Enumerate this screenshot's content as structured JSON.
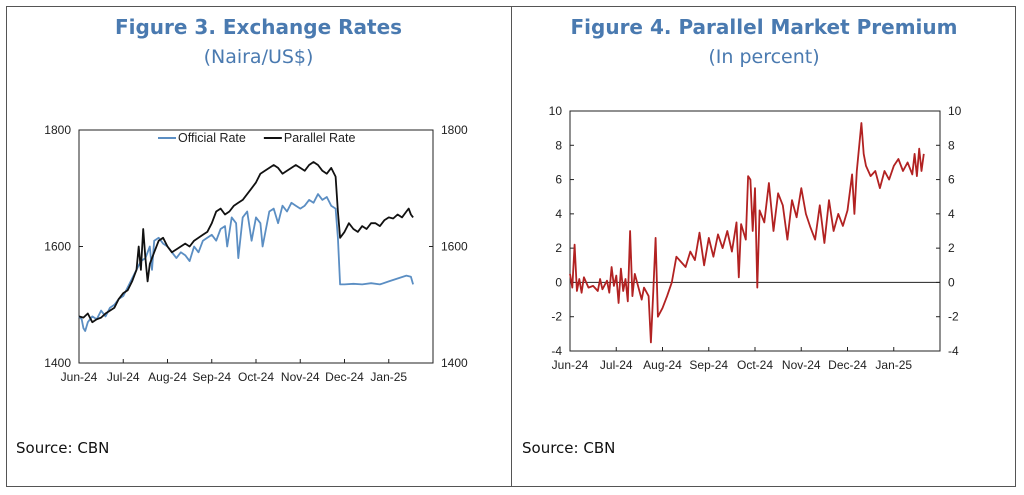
{
  "figure3": {
    "title": "Figure 3. Exchange Rates",
    "subtitle": "(Naira/US$)",
    "source": "Source: CBN"
  },
  "figure4": {
    "title": "Figure 4. Parallel Market Premium",
    "subtitle": "(In percent)",
    "source": "Source: CBN"
  },
  "chart_data": [
    {
      "type": "line",
      "title": "Figure 3. Exchange Rates",
      "subtitle": "(Naira/US$)",
      "categories": [
        "Jun-24",
        "Jul-24",
        "Aug-24",
        "Sep-24",
        "Oct-24",
        "Nov-24",
        "Dec-24",
        "Jan-25"
      ],
      "ylim": [
        1400,
        1800
      ],
      "yticks": [
        1400,
        1600,
        1800
      ],
      "y2ticks": [
        1400,
        1600,
        1800
      ],
      "legend_position": "top",
      "grid": false,
      "series": [
        {
          "name": "Official Rate",
          "color": "#5b8ec3",
          "points": [
            [
              0,
              1480
            ],
            [
              0.06,
              1475
            ],
            [
              0.1,
              1460
            ],
            [
              0.14,
              1455
            ],
            [
              0.2,
              1470
            ],
            [
              0.3,
              1480
            ],
            [
              0.4,
              1475
            ],
            [
              0.5,
              1490
            ],
            [
              0.6,
              1480
            ],
            [
              0.7,
              1495
            ],
            [
              0.8,
              1500
            ],
            [
              0.9,
              1510
            ],
            [
              1.0,
              1515
            ],
            [
              1.1,
              1530
            ],
            [
              1.2,
              1545
            ],
            [
              1.3,
              1560
            ],
            [
              1.4,
              1575
            ],
            [
              1.5,
              1580
            ],
            [
              1.6,
              1600
            ],
            [
              1.65,
              1560
            ],
            [
              1.7,
              1610
            ],
            [
              1.8,
              1615
            ],
            [
              1.9,
              1605
            ],
            [
              2.0,
              1600
            ],
            [
              2.1,
              1590
            ],
            [
              2.2,
              1580
            ],
            [
              2.3,
              1590
            ],
            [
              2.4,
              1585
            ],
            [
              2.5,
              1575
            ],
            [
              2.6,
              1600
            ],
            [
              2.7,
              1590
            ],
            [
              2.8,
              1610
            ],
            [
              2.9,
              1615
            ],
            [
              3.0,
              1620
            ],
            [
              3.1,
              1610
            ],
            [
              3.2,
              1630
            ],
            [
              3.3,
              1635
            ],
            [
              3.35,
              1600
            ],
            [
              3.45,
              1650
            ],
            [
              3.55,
              1640
            ],
            [
              3.6,
              1580
            ],
            [
              3.7,
              1650
            ],
            [
              3.8,
              1660
            ],
            [
              3.9,
              1610
            ],
            [
              4.0,
              1650
            ],
            [
              4.1,
              1640
            ],
            [
              4.15,
              1600
            ],
            [
              4.3,
              1660
            ],
            [
              4.4,
              1665
            ],
            [
              4.5,
              1640
            ],
            [
              4.6,
              1670
            ],
            [
              4.7,
              1660
            ],
            [
              4.8,
              1675
            ],
            [
              4.9,
              1670
            ],
            [
              5.0,
              1665
            ],
            [
              5.1,
              1670
            ],
            [
              5.2,
              1680
            ],
            [
              5.3,
              1675
            ],
            [
              5.4,
              1690
            ],
            [
              5.5,
              1680
            ],
            [
              5.6,
              1685
            ],
            [
              5.7,
              1670
            ],
            [
              5.8,
              1665
            ],
            [
              5.85,
              1615
            ],
            [
              5.9,
              1535
            ],
            [
              6.0,
              1535
            ],
            [
              6.2,
              1536
            ],
            [
              6.4,
              1535
            ],
            [
              6.6,
              1537
            ],
            [
              6.8,
              1535
            ],
            [
              7.0,
              1540
            ],
            [
              7.2,
              1545
            ],
            [
              7.4,
              1550
            ],
            [
              7.5,
              1548
            ],
            [
              7.55,
              1535
            ]
          ]
        },
        {
          "name": "Parallel Rate",
          "color": "#111111",
          "points": [
            [
              0,
              1480
            ],
            [
              0.1,
              1478
            ],
            [
              0.2,
              1485
            ],
            [
              0.3,
              1470
            ],
            [
              0.4,
              1475
            ],
            [
              0.5,
              1478
            ],
            [
              0.6,
              1485
            ],
            [
              0.7,
              1490
            ],
            [
              0.8,
              1495
            ],
            [
              0.9,
              1510
            ],
            [
              1.0,
              1520
            ],
            [
              1.1,
              1525
            ],
            [
              1.2,
              1540
            ],
            [
              1.3,
              1560
            ],
            [
              1.35,
              1600
            ],
            [
              1.4,
              1560
            ],
            [
              1.45,
              1630
            ],
            [
              1.5,
              1580
            ],
            [
              1.55,
              1540
            ],
            [
              1.6,
              1570
            ],
            [
              1.7,
              1590
            ],
            [
              1.8,
              1610
            ],
            [
              1.9,
              1615
            ],
            [
              2.0,
              1600
            ],
            [
              2.1,
              1590
            ],
            [
              2.2,
              1595
            ],
            [
              2.3,
              1600
            ],
            [
              2.4,
              1605
            ],
            [
              2.5,
              1600
            ],
            [
              2.6,
              1610
            ],
            [
              2.7,
              1615
            ],
            [
              2.8,
              1620
            ],
            [
              2.9,
              1625
            ],
            [
              3.0,
              1640
            ],
            [
              3.1,
              1660
            ],
            [
              3.2,
              1665
            ],
            [
              3.3,
              1655
            ],
            [
              3.4,
              1660
            ],
            [
              3.5,
              1670
            ],
            [
              3.6,
              1675
            ],
            [
              3.7,
              1680
            ],
            [
              3.8,
              1690
            ],
            [
              3.9,
              1700
            ],
            [
              4.0,
              1710
            ],
            [
              4.1,
              1725
            ],
            [
              4.2,
              1730
            ],
            [
              4.3,
              1735
            ],
            [
              4.4,
              1740
            ],
            [
              4.5,
              1735
            ],
            [
              4.6,
              1725
            ],
            [
              4.7,
              1730
            ],
            [
              4.8,
              1735
            ],
            [
              4.9,
              1740
            ],
            [
              5.0,
              1735
            ],
            [
              5.1,
              1730
            ],
            [
              5.2,
              1740
            ],
            [
              5.3,
              1745
            ],
            [
              5.4,
              1740
            ],
            [
              5.5,
              1730
            ],
            [
              5.6,
              1725
            ],
            [
              5.7,
              1735
            ],
            [
              5.8,
              1720
            ],
            [
              5.85,
              1660
            ],
            [
              5.9,
              1615
            ],
            [
              6.0,
              1625
            ],
            [
              6.1,
              1640
            ],
            [
              6.2,
              1630
            ],
            [
              6.3,
              1625
            ],
            [
              6.4,
              1635
            ],
            [
              6.5,
              1630
            ],
            [
              6.6,
              1640
            ],
            [
              6.7,
              1640
            ],
            [
              6.8,
              1635
            ],
            [
              6.9,
              1645
            ],
            [
              7.0,
              1650
            ],
            [
              7.1,
              1648
            ],
            [
              7.2,
              1655
            ],
            [
              7.3,
              1650
            ],
            [
              7.4,
              1660
            ],
            [
              7.45,
              1665
            ],
            [
              7.5,
              1655
            ],
            [
              7.55,
              1650
            ]
          ]
        }
      ]
    },
    {
      "type": "line",
      "title": "Figure 4. Parallel Market Premium",
      "subtitle": "(In percent)",
      "categories": [
        "Jun-24",
        "Jul-24",
        "Aug-24",
        "Sep-24",
        "Oct-24",
        "Nov-24",
        "Dec-24",
        "Jan-25"
      ],
      "ylim": [
        -4,
        10
      ],
      "yticks": [
        -4,
        -2,
        0,
        2,
        4,
        6,
        8,
        10
      ],
      "y2ticks": [
        -4,
        -2,
        0,
        2,
        4,
        6,
        8,
        10
      ],
      "zero_line": true,
      "grid": false,
      "series": [
        {
          "name": "",
          "color": "#b22222",
          "points": [
            [
              0,
              0.5
            ],
            [
              0.05,
              -0.3
            ],
            [
              0.1,
              2.2
            ],
            [
              0.15,
              -0.5
            ],
            [
              0.2,
              0.2
            ],
            [
              0.25,
              -0.6
            ],
            [
              0.3,
              0.3
            ],
            [
              0.4,
              -0.3
            ],
            [
              0.5,
              -0.2
            ],
            [
              0.6,
              -0.5
            ],
            [
              0.65,
              0.2
            ],
            [
              0.7,
              -0.4
            ],
            [
              0.8,
              0.1
            ],
            [
              0.85,
              -0.6
            ],
            [
              0.9,
              0.9
            ],
            [
              0.95,
              -0.2
            ],
            [
              1.0,
              0.4
            ],
            [
              1.05,
              -1.2
            ],
            [
              1.1,
              0.8
            ],
            [
              1.15,
              -0.5
            ],
            [
              1.2,
              0.2
            ],
            [
              1.25,
              -1.1
            ],
            [
              1.3,
              3.0
            ],
            [
              1.35,
              -0.8
            ],
            [
              1.4,
              0.5
            ],
            [
              1.5,
              -0.5
            ],
            [
              1.55,
              -1.0
            ],
            [
              1.6,
              -0.3
            ],
            [
              1.7,
              -0.8
            ],
            [
              1.75,
              -3.5
            ],
            [
              1.8,
              -0.5
            ],
            [
              1.85,
              2.6
            ],
            [
              1.9,
              -2.0
            ],
            [
              2.0,
              -1.5
            ],
            [
              2.1,
              -0.8
            ],
            [
              2.2,
              0.0
            ],
            [
              2.3,
              1.5
            ],
            [
              2.4,
              1.2
            ],
            [
              2.5,
              0.9
            ],
            [
              2.6,
              1.8
            ],
            [
              2.7,
              1.3
            ],
            [
              2.8,
              2.9
            ],
            [
              2.9,
              1.0
            ],
            [
              3.0,
              2.6
            ],
            [
              3.1,
              1.5
            ],
            [
              3.2,
              2.8
            ],
            [
              3.3,
              2.0
            ],
            [
              3.4,
              3.0
            ],
            [
              3.5,
              1.8
            ],
            [
              3.6,
              3.5
            ],
            [
              3.65,
              0.3
            ],
            [
              3.7,
              3.4
            ],
            [
              3.8,
              2.5
            ],
            [
              3.85,
              6.2
            ],
            [
              3.9,
              6.0
            ],
            [
              3.95,
              3.0
            ],
            [
              4.0,
              5.5
            ],
            [
              4.05,
              -0.3
            ],
            [
              4.1,
              4.2
            ],
            [
              4.2,
              3.5
            ],
            [
              4.3,
              5.8
            ],
            [
              4.4,
              3.0
            ],
            [
              4.5,
              5.2
            ],
            [
              4.6,
              4.5
            ],
            [
              4.7,
              2.5
            ],
            [
              4.8,
              4.8
            ],
            [
              4.9,
              3.8
            ],
            [
              5.0,
              5.5
            ],
            [
              5.1,
              4.0
            ],
            [
              5.2,
              3.2
            ],
            [
              5.3,
              2.5
            ],
            [
              5.4,
              4.5
            ],
            [
              5.5,
              2.3
            ],
            [
              5.6,
              4.8
            ],
            [
              5.7,
              3.0
            ],
            [
              5.8,
              4.0
            ],
            [
              5.9,
              3.3
            ],
            [
              6.0,
              4.2
            ],
            [
              6.1,
              6.3
            ],
            [
              6.15,
              4.0
            ],
            [
              6.2,
              6.5
            ],
            [
              6.3,
              9.3
            ],
            [
              6.35,
              7.5
            ],
            [
              6.4,
              6.8
            ],
            [
              6.5,
              6.2
            ],
            [
              6.6,
              6.5
            ],
            [
              6.7,
              5.5
            ],
            [
              6.8,
              6.5
            ],
            [
              6.9,
              6.0
            ],
            [
              7.0,
              6.8
            ],
            [
              7.1,
              7.2
            ],
            [
              7.2,
              6.5
            ],
            [
              7.3,
              7.0
            ],
            [
              7.4,
              6.3
            ],
            [
              7.45,
              7.5
            ],
            [
              7.5,
              6.2
            ],
            [
              7.55,
              7.8
            ],
            [
              7.6,
              6.5
            ],
            [
              7.65,
              7.5
            ]
          ]
        }
      ]
    }
  ]
}
